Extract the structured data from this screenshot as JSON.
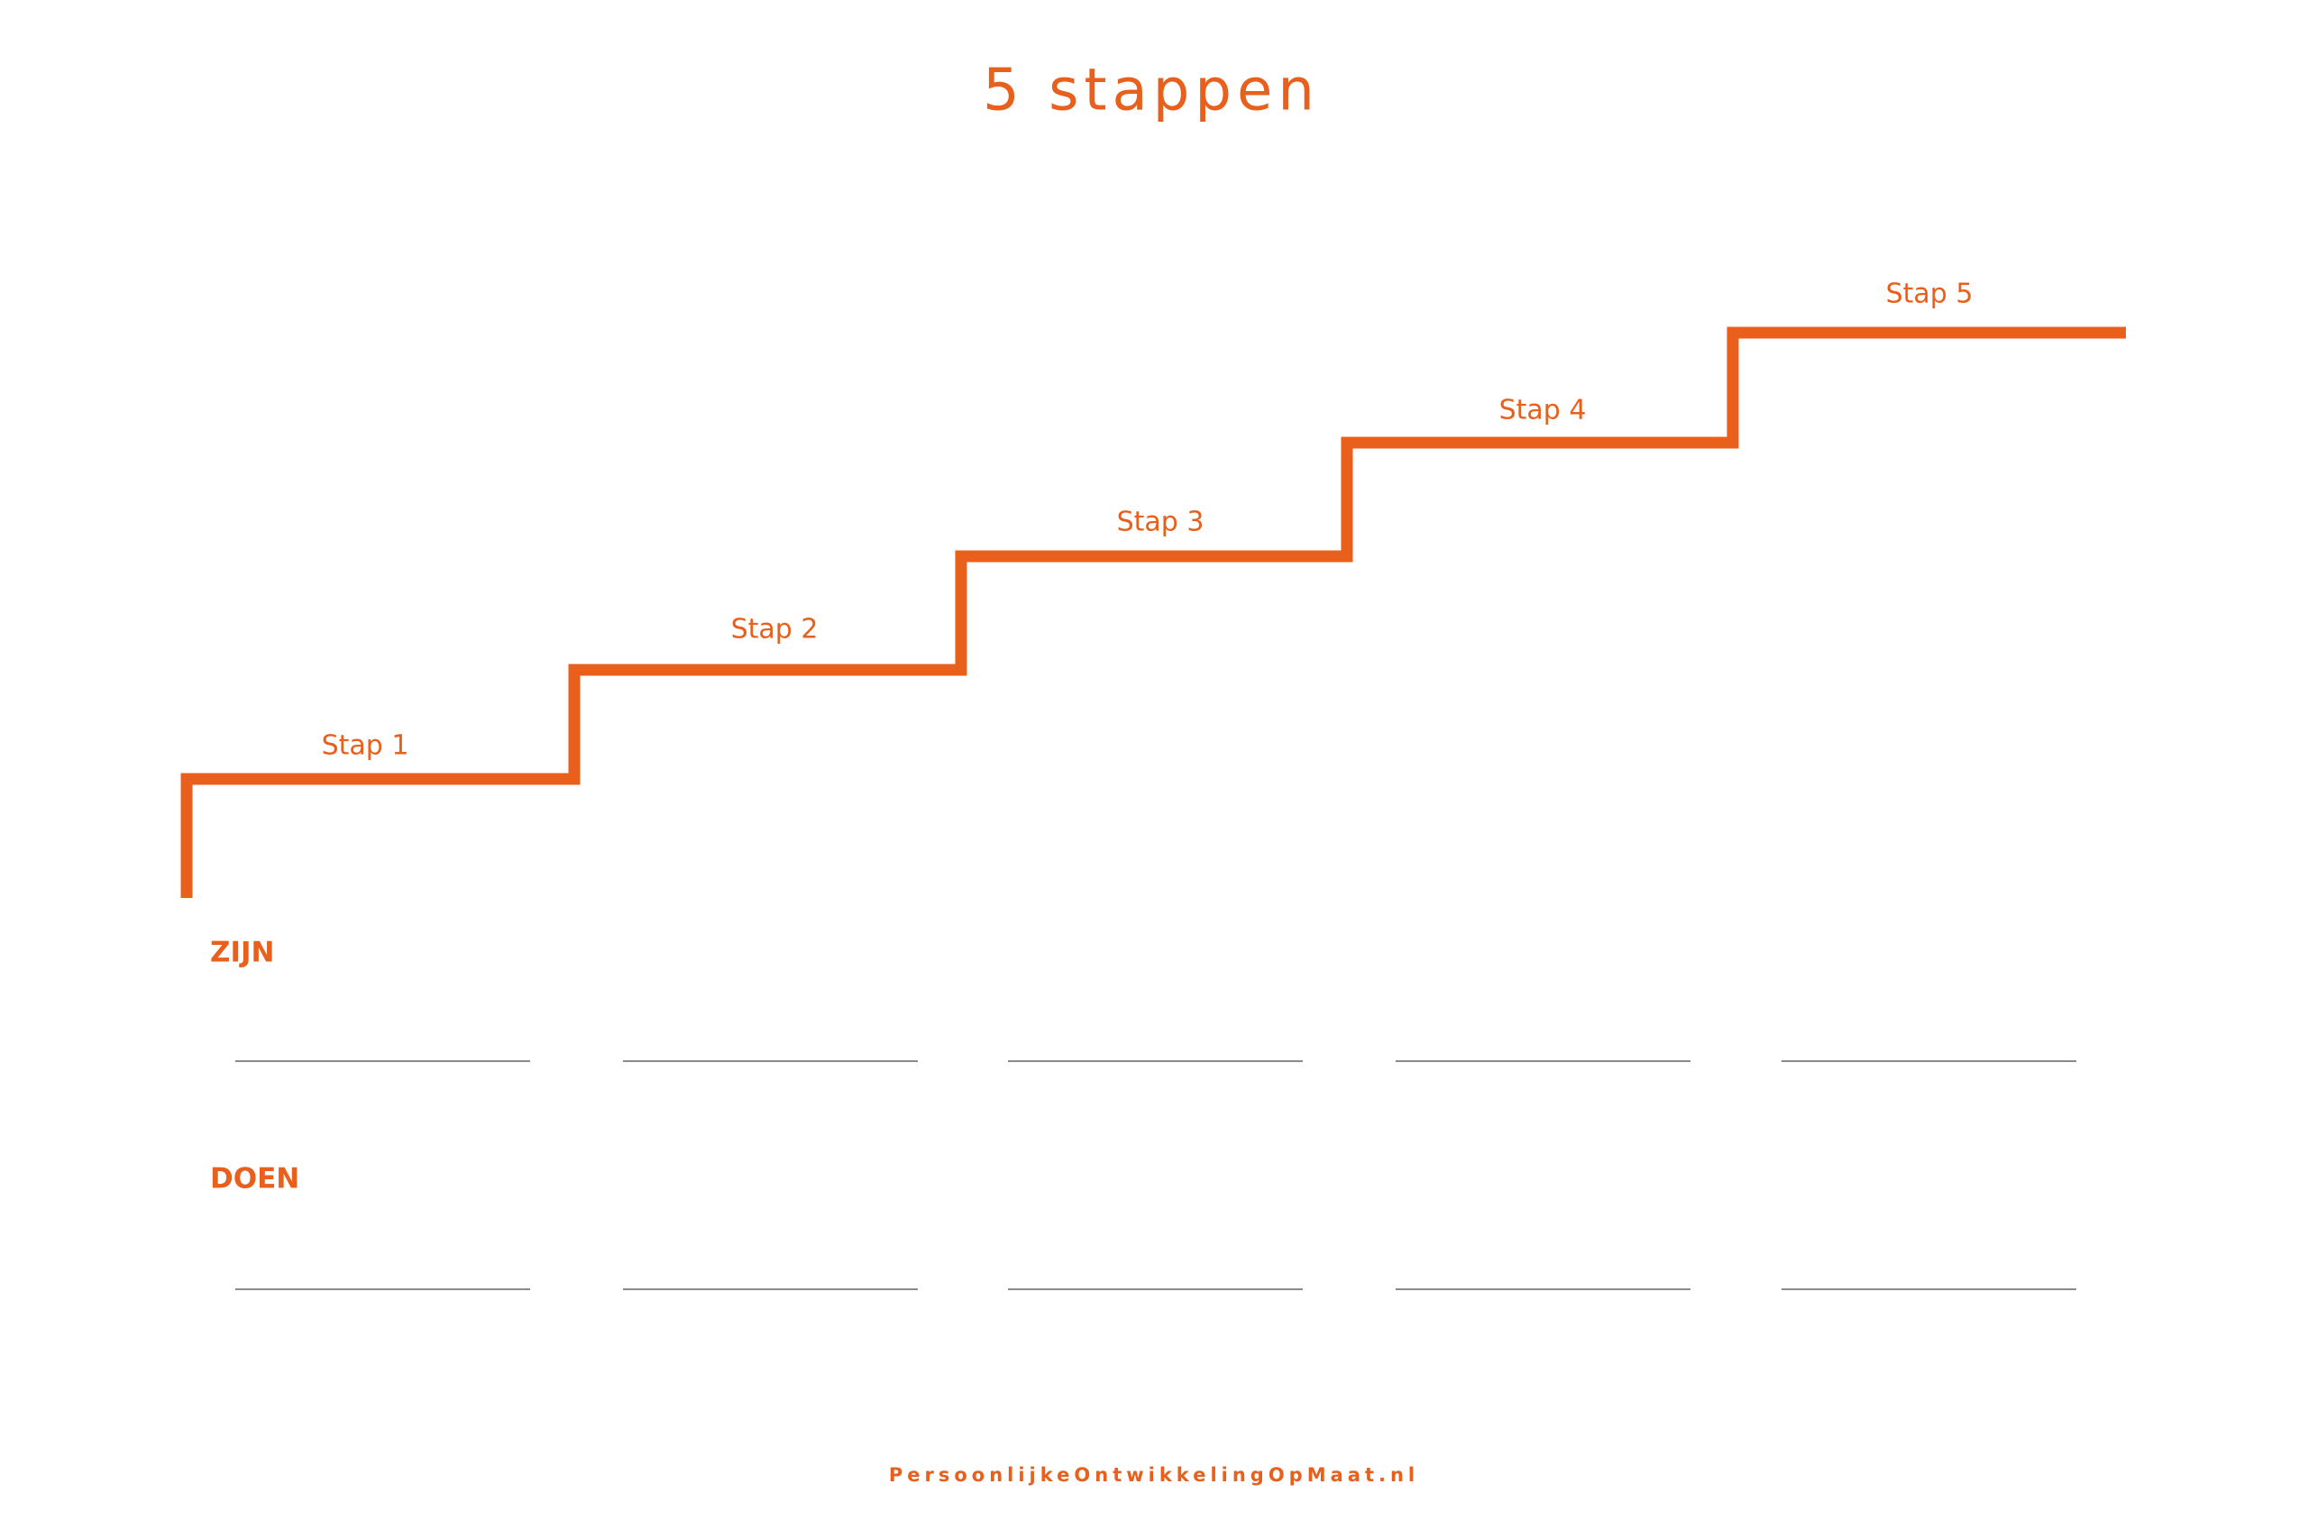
{
  "title": "5 stappen",
  "steps": [
    "Stap 1",
    "Stap 2",
    "Stap 3",
    "Stap 4",
    "Stap 5"
  ],
  "rows": [
    "ZIJN",
    "DOEN"
  ],
  "footer": "PersoonlijkeOntwikkelingOpMaat.nl"
}
